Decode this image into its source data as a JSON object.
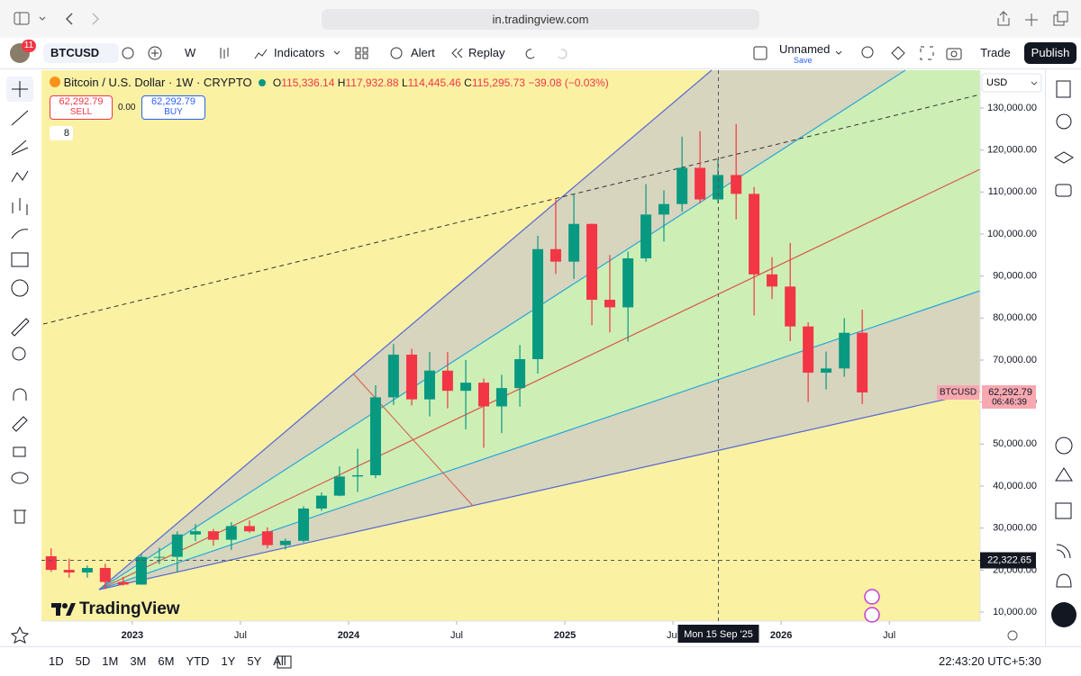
{
  "browser": {
    "url": "in.tradingview.com"
  },
  "toolbar": {
    "notifications": "11",
    "symbol": "BTCUSD",
    "interval": "W",
    "indicators": "Indicators",
    "alert": "Alert",
    "replay": "Replay",
    "layout_name": "Unnamed",
    "layout_status": "Save",
    "trade": "Trade",
    "publish": "Publish"
  },
  "legend": {
    "title": "Bitcoin / U.S. Dollar · 1W · CRYPTO",
    "open_label": "O",
    "open": "115,336.14",
    "high_label": "H",
    "high": "117,932.88",
    "low_label": "L",
    "low": "114,445.46",
    "close_label": "C",
    "close": "115,295.73",
    "change": "−39.08 (−0.03%)",
    "sell_price": "62,292.79",
    "sell": "SELL",
    "spread": "0.00",
    "buy_price": "62,292.79",
    "buy": "BUY",
    "collapsed_count": "8"
  },
  "chart_data": {
    "type": "candlestick",
    "currency": "USD",
    "x": [
      2022.625,
      2022.708,
      2022.792,
      2022.875,
      2022.958,
      2023.042,
      2023.125,
      2023.208,
      2023.292,
      2023.375,
      2023.458,
      2023.542,
      2023.625,
      2023.708,
      2023.792,
      2023.875,
      2023.958,
      2024.042,
      2024.125,
      2024.208,
      2024.292,
      2024.375,
      2024.458,
      2024.542,
      2024.625,
      2024.708,
      2024.792,
      2024.875,
      2024.958,
      2025.042,
      2025.125,
      2025.208,
      2025.292,
      2025.375,
      2025.458,
      2025.542,
      2025.625,
      2025.708,
      2025.792,
      2025.875,
      2025.958,
      2026.042,
      2026.125,
      2026.208,
      2026.292,
      2026.375
    ],
    "open": [
      23300,
      20050,
      19430,
      20500,
      17170,
      16550,
      23130,
      23150,
      28480,
      29250,
      27220,
      30480,
      29230,
      25940,
      26970,
      34660,
      37720,
      42280,
      42580,
      61130,
      71290,
      60640,
      67490,
      62680,
      64620,
      58970,
      63330,
      70220,
      96410,
      93430,
      102410,
      84350,
      82550,
      94210,
      104640,
      107140,
      115760,
      108240,
      114050,
      109560,
      90400,
      87500,
      78000,
      67000,
      68000,
      76500
    ],
    "high": [
      25200,
      22700,
      21100,
      21500,
      18400,
      23900,
      25300,
      29200,
      31000,
      29800,
      31400,
      31800,
      30200,
      27500,
      35200,
      38500,
      44700,
      48900,
      64000,
      73800,
      72700,
      71900,
      71900,
      70000,
      65600,
      66500,
      73600,
      99600,
      108300,
      109600,
      102500,
      95000,
      95800,
      111900,
      110400,
      123200,
      124500,
      117900,
      126200,
      111200,
      94500,
      97900,
      79000,
      72000,
      80000,
      82000
    ],
    "low": [
      19600,
      18200,
      18200,
      15500,
      16300,
      16500,
      21400,
      19600,
      26900,
      25800,
      24800,
      28900,
      25200,
      24900,
      26600,
      34100,
      37600,
      38600,
      41900,
      59300,
      59200,
      56600,
      58500,
      53500,
      49100,
      52600,
      58900,
      66800,
      90500,
      89300,
      78300,
      76600,
      74400,
      93400,
      98200,
      105300,
      107300,
      107300,
      103500,
      80600,
      84500,
      74500,
      60000,
      63000,
      66000,
      59500
    ],
    "close": [
      20050,
      19430,
      20500,
      17170,
      16550,
      23130,
      23150,
      28480,
      29250,
      27220,
      30480,
      29230,
      25940,
      26970,
      34660,
      37720,
      42280,
      42580,
      61130,
      71290,
      60640,
      67490,
      62680,
      64620,
      58970,
      63330,
      70220,
      96410,
      93430,
      102410,
      84350,
      82550,
      94210,
      104640,
      107140,
      115760,
      108240,
      114050,
      109560,
      90400,
      87500,
      78000,
      67000,
      68000,
      76500,
      62292.79
    ],
    "up_color": "#089981",
    "down_color": "#f23645",
    "xlim": [
      2022.58,
      2026.92
    ],
    "xticks": [
      2023,
      {
        "value": 2023.5,
        "label": "Jul"
      },
      2024,
      {
        "value": 2024.5,
        "label": "Jul"
      },
      2025,
      {
        "value": 2025.5,
        "label": "Jul"
      },
      2026,
      {
        "value": 2026.5,
        "label": "Jul"
      }
    ],
    "ylim": [
      7860,
      139000
    ],
    "yticks": [
      {
        "value": 10000,
        "label": "10,000.00"
      },
      {
        "value": 20000,
        "label": "20,000.00"
      },
      {
        "value": 30000,
        "label": "30,000.00"
      },
      {
        "value": 40000,
        "label": "40,000.00"
      },
      {
        "value": 50000,
        "label": "50,000.00"
      },
      {
        "value": 60000,
        "label": "60,000.00"
      },
      {
        "value": 70000,
        "label": "70,000.00"
      },
      {
        "value": 80000,
        "label": "80,000.00"
      },
      {
        "value": 90000,
        "label": "90,000.00"
      },
      {
        "value": 100000,
        "label": "100,000.00"
      },
      {
        "value": 110000,
        "label": "110,000.00"
      },
      {
        "value": 120000,
        "label": "120,000.00"
      },
      {
        "value": 130000,
        "label": "130,000.00"
      }
    ],
    "symbol_label": "BTCUSD",
    "last_price": {
      "value": 62292.79,
      "label": "62,292.79"
    },
    "countdown": "06:46:39",
    "crosshair_price": {
      "value": 22322.65,
      "label": "22,322.65"
    },
    "crosshair_time": {
      "value": 2025.71,
      "label": "Mon 15 Sep '25"
    },
    "watermark": "TradingView"
  },
  "bottom_bar": {
    "ranges": [
      "1D",
      "5D",
      "1M",
      "3M",
      "6M",
      "YTD",
      "1Y",
      "5Y",
      "All"
    ],
    "clock": "22:43:20 UTC+5:30"
  }
}
